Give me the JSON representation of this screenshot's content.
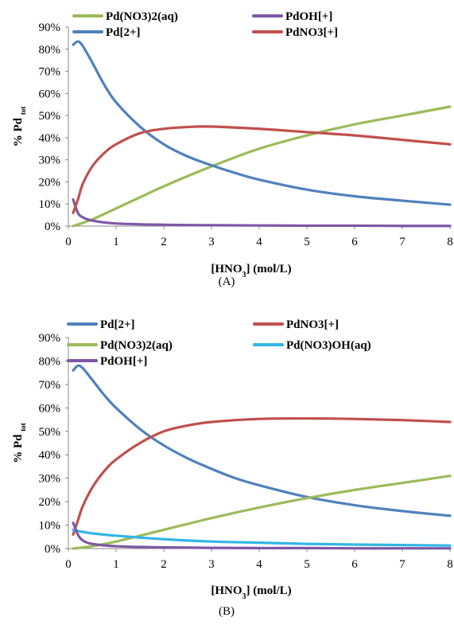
{
  "chart_data": [
    {
      "type": "line",
      "caption": "(A)",
      "xlabel": "[HNO3] (mol/L)",
      "ylabel": "% Pd tot",
      "xlim": [
        0,
        8
      ],
      "ylim": [
        0,
        0.9
      ],
      "x_ticks": [
        "0",
        "1",
        "2",
        "3",
        "4",
        "5",
        "6",
        "7",
        "8"
      ],
      "y_ticks": [
        "0%",
        "10%",
        "20%",
        "30%",
        "40%",
        "50%",
        "60%",
        "70%",
        "80%",
        "90%"
      ],
      "legend_position": "top",
      "series": [
        {
          "name": "Pd(NO3)2(aq)",
          "color": "#9BBB59",
          "x": [
            0.1,
            0.5,
            1,
            1.5,
            2,
            3,
            4,
            5,
            6,
            7,
            8
          ],
          "y": [
            0.0,
            0.03,
            0.08,
            0.13,
            0.18,
            0.27,
            0.35,
            0.41,
            0.46,
            0.5,
            0.54
          ]
        },
        {
          "name": "PdOH[+]",
          "color": "#7E57A7",
          "x": [
            0.1,
            0.2,
            0.3,
            0.5,
            1,
            2,
            3,
            4,
            5,
            6,
            7,
            8
          ],
          "y": [
            0.12,
            0.06,
            0.04,
            0.025,
            0.012,
            0.006,
            0.004,
            0.003,
            0.002,
            0.002,
            0.001,
            0.001
          ]
        },
        {
          "name": "Pd[2+]",
          "color": "#4F81BD",
          "x": [
            0.1,
            0.2,
            0.3,
            0.5,
            0.75,
            1,
            1.5,
            2,
            2.5,
            3,
            3.5,
            4,
            5,
            6,
            7,
            8
          ],
          "y": [
            0.82,
            0.835,
            0.815,
            0.74,
            0.64,
            0.56,
            0.45,
            0.37,
            0.315,
            0.275,
            0.24,
            0.21,
            0.165,
            0.135,
            0.115,
            0.097
          ]
        },
        {
          "name": "PdNO3[+]",
          "color": "#C0504D",
          "x": [
            0.1,
            0.2,
            0.3,
            0.5,
            0.75,
            1,
            1.5,
            2,
            2.5,
            3,
            4,
            5,
            6,
            7,
            8
          ],
          "y": [
            0.06,
            0.12,
            0.19,
            0.27,
            0.33,
            0.37,
            0.42,
            0.44,
            0.448,
            0.45,
            0.44,
            0.425,
            0.41,
            0.39,
            0.37
          ]
        }
      ]
    },
    {
      "type": "line",
      "caption": "(B)",
      "xlabel": "[HNO3] (mol/L)",
      "ylabel": "% Pd tot",
      "xlim": [
        0,
        8
      ],
      "ylim": [
        0,
        0.9
      ],
      "x_ticks": [
        "0",
        "1",
        "2",
        "3",
        "4",
        "5",
        "6",
        "7",
        "8"
      ],
      "y_ticks": [
        "0%",
        "10%",
        "20%",
        "30%",
        "40%",
        "50%",
        "60%",
        "70%",
        "80%",
        "90%"
      ],
      "legend_position": "top",
      "series": [
        {
          "name": "Pd[2+]",
          "color": "#4F81BD",
          "x": [
            0.1,
            0.2,
            0.3,
            0.5,
            0.75,
            1,
            1.5,
            2,
            2.5,
            3,
            3.5,
            4,
            5,
            6,
            7,
            8
          ],
          "y": [
            0.76,
            0.78,
            0.77,
            0.72,
            0.655,
            0.6,
            0.51,
            0.44,
            0.385,
            0.34,
            0.3,
            0.27,
            0.22,
            0.185,
            0.16,
            0.14
          ]
        },
        {
          "name": "PdNO3[+]",
          "color": "#C0504D",
          "x": [
            0.1,
            0.2,
            0.3,
            0.5,
            0.75,
            1,
            1.5,
            2,
            2.5,
            3,
            4,
            5,
            6,
            7,
            8
          ],
          "y": [
            0.06,
            0.12,
            0.18,
            0.26,
            0.33,
            0.38,
            0.45,
            0.5,
            0.525,
            0.54,
            0.553,
            0.555,
            0.553,
            0.548,
            0.54
          ]
        },
        {
          "name": "Pd(NO3)2(aq)",
          "color": "#9BBB59",
          "x": [
            0.1,
            0.5,
            1,
            2,
            3,
            4,
            5,
            6,
            7,
            8
          ],
          "y": [
            0.0,
            0.01,
            0.03,
            0.08,
            0.13,
            0.175,
            0.215,
            0.25,
            0.28,
            0.31
          ]
        },
        {
          "name": "Pd(NO3)OH(aq)",
          "color": "#31B6E7",
          "x": [
            0.1,
            0.2,
            0.5,
            1,
            2,
            3,
            4,
            5,
            6,
            7,
            8
          ],
          "y": [
            0.08,
            0.075,
            0.065,
            0.055,
            0.04,
            0.03,
            0.025,
            0.02,
            0.017,
            0.015,
            0.013
          ]
        },
        {
          "name": "PdOH[+]",
          "color": "#7E57A7",
          "x": [
            0.1,
            0.2,
            0.3,
            0.5,
            1,
            2,
            3,
            4,
            5,
            6,
            7,
            8
          ],
          "y": [
            0.11,
            0.06,
            0.035,
            0.02,
            0.01,
            0.005,
            0.003,
            0.002,
            0.002,
            0.001,
            0.001,
            0.001
          ]
        }
      ]
    }
  ]
}
